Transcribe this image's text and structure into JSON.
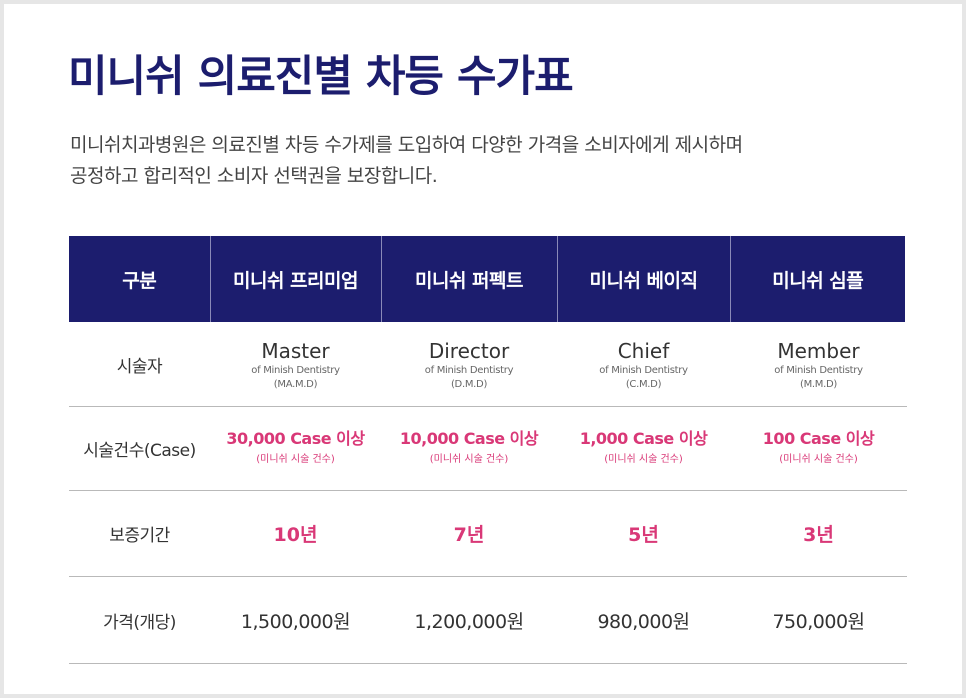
{
  "title": "미니쉬 의료진별 차등 수가표",
  "description": {
    "line1": "미니쉬치과병원은 의료진별 차등 수가제를 도입하여 다양한 가격을 소비자에게 제시하며",
    "line2": "공정하고 합리적인 소비자 선택권을 보장합니다."
  },
  "colors": {
    "header_bg": "#1c1d6e",
    "accent": "#d93877",
    "title": "#1c1d6e"
  },
  "table": {
    "headers": [
      "구분",
      "미니쉬 프리미엄",
      "미니쉬 퍼펙트",
      "미니쉬 베이직",
      "미니쉬 심플"
    ],
    "practitioner": {
      "label": "시술자",
      "cells": [
        {
          "grade": "Master",
          "org": "of Minish Dentistry",
          "abbr": "(MA.M.D)"
        },
        {
          "grade": "Director",
          "org": "of Minish Dentistry",
          "abbr": "(D.M.D)"
        },
        {
          "grade": "Chief",
          "org": "of Minish Dentistry",
          "abbr": "(C.M.D)"
        },
        {
          "grade": "Member",
          "org": "of Minish Dentistry",
          "abbr": "(M.M.D)"
        }
      ]
    },
    "cases": {
      "label": "시술건수(Case)",
      "cells": [
        {
          "value": "30,000 Case 이상",
          "note": "(미니쉬 시술 건수)"
        },
        {
          "value": "10,000 Case 이상",
          "note": "(미니쉬 시술 건수)"
        },
        {
          "value": "1,000 Case 이상",
          "note": "(미니쉬 시술 건수)"
        },
        {
          "value": "100 Case 이상",
          "note": "(미니쉬 시술 건수)"
        }
      ]
    },
    "warranty": {
      "label": "보증기간",
      "cells": [
        "10년",
        "7년",
        "5년",
        "3년"
      ]
    },
    "price": {
      "label": "가격(개당)",
      "cells": [
        "1,500,000원",
        "1,200,000원",
        "980,000원",
        "750,000원"
      ]
    }
  }
}
